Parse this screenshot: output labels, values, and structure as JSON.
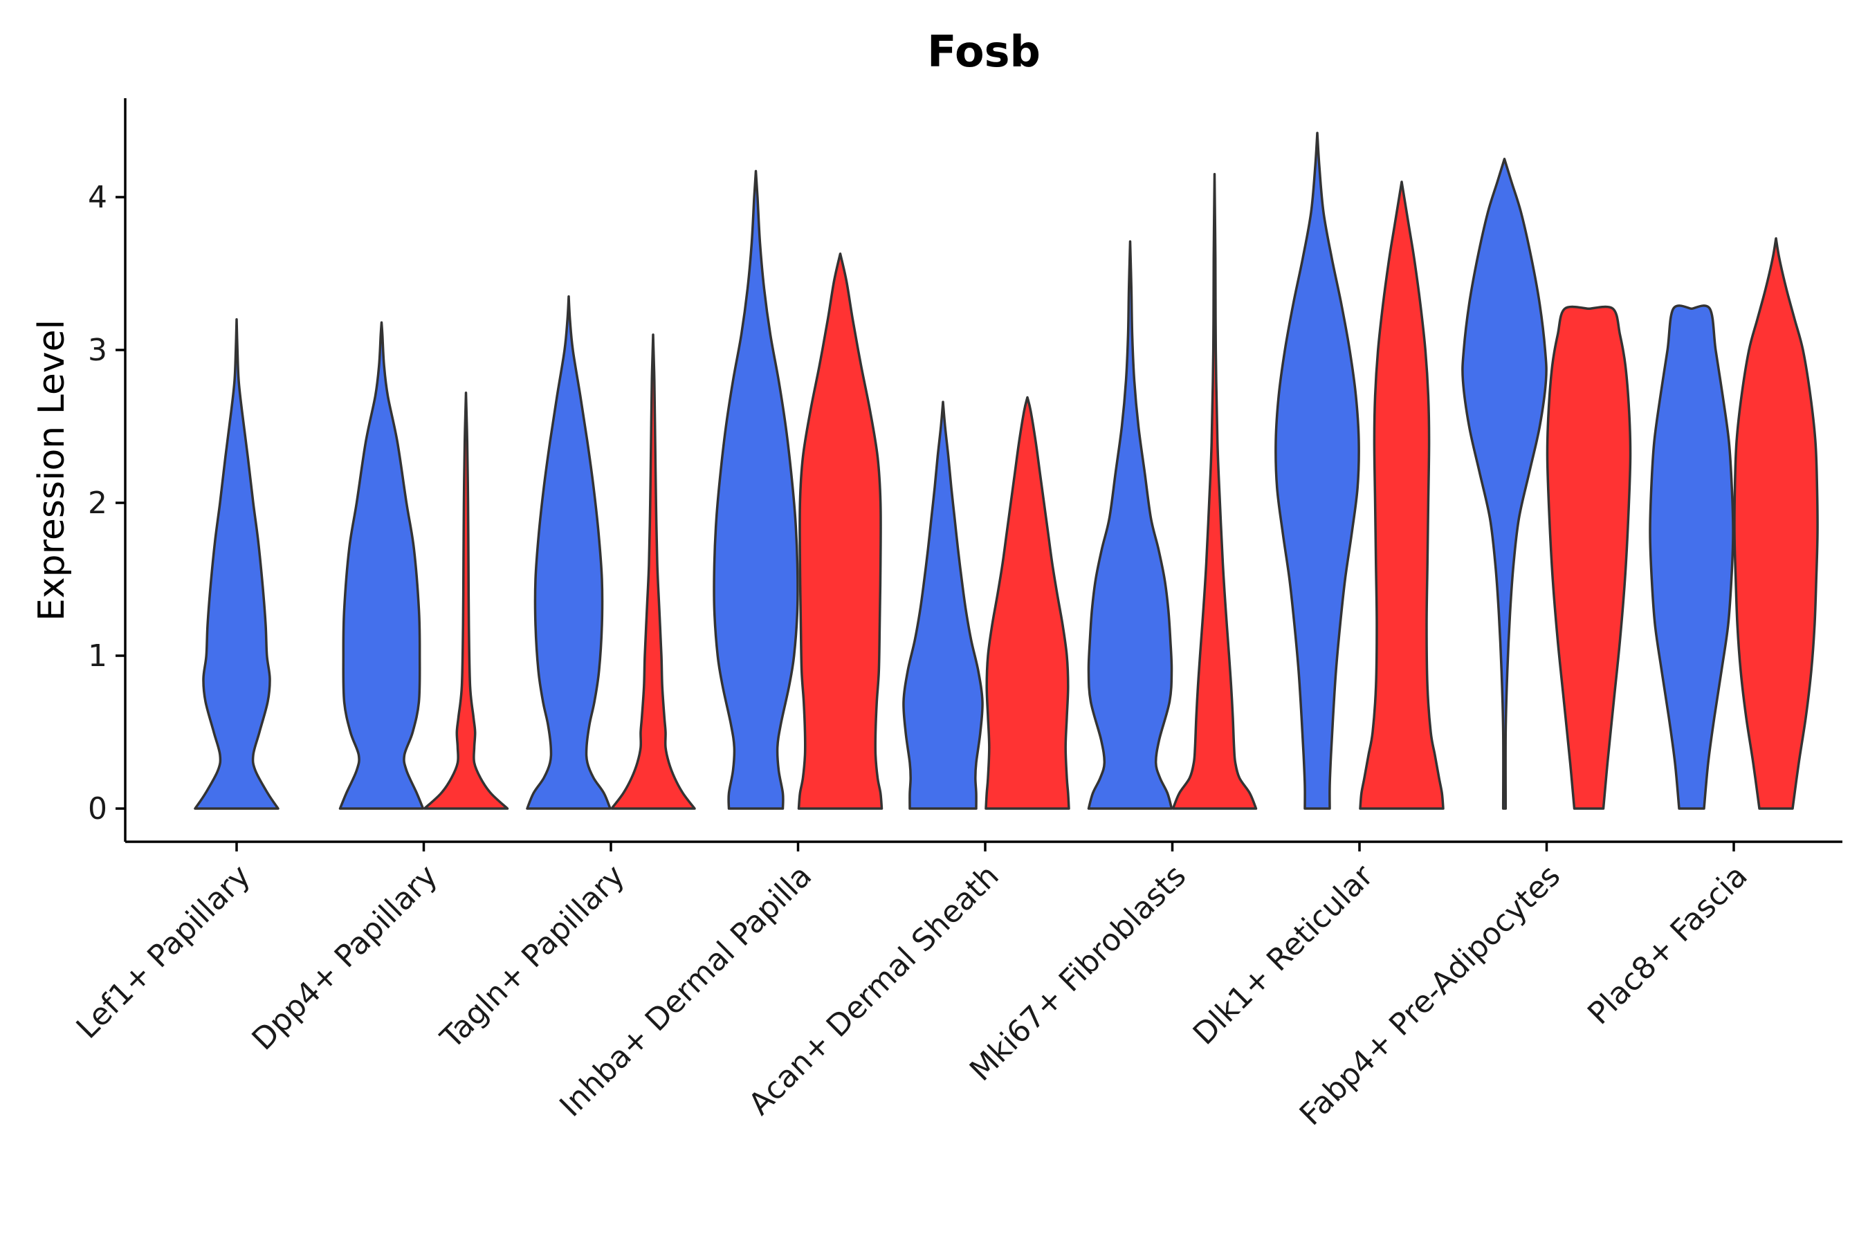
{
  "chart_data": {
    "type": "violin",
    "title": "Fosb",
    "ylabel": "Expression Level",
    "xlabel": "",
    "ylim": [
      -0.22,
      4.65
    ],
    "yticks": [
      0,
      1,
      2,
      3,
      4
    ],
    "categories": [
      "Lef1+ Papillary",
      "Dpp4+ Papillary",
      "Tagln+ Papillary",
      "Inhba+ Dermal Papilla",
      "Acan+ Dermal Sheath",
      "Mki67+ Fibroblasts",
      "Dlk1+ Reticular",
      "Fabp4+ Pre-Adipocytes",
      "Plac8+ Fascia"
    ],
    "colors": {
      "blue": "#4470EC",
      "red": "#FF3333"
    },
    "violins": [
      {
        "category": "Lef1+ Papillary",
        "color": "blue",
        "max": 3.2,
        "profile": [
          [
            0,
            1
          ],
          [
            0.1,
            0.75
          ],
          [
            0.25,
            0.45
          ],
          [
            0.35,
            0.4
          ],
          [
            0.5,
            0.55
          ],
          [
            0.7,
            0.75
          ],
          [
            0.85,
            0.8
          ],
          [
            1.0,
            0.73
          ],
          [
            1.2,
            0.7
          ],
          [
            1.45,
            0.63
          ],
          [
            1.75,
            0.52
          ],
          [
            2.0,
            0.4
          ],
          [
            2.3,
            0.27
          ],
          [
            2.6,
            0.13
          ],
          [
            2.8,
            0.05
          ],
          [
            3.0,
            0.02
          ],
          [
            3.2,
            0
          ]
        ]
      },
      {
        "category": "Dpp4+ Papillary",
        "color": "blue",
        "max": 3.18,
        "profile": [
          [
            0,
            1
          ],
          [
            0.1,
            0.85
          ],
          [
            0.25,
            0.6
          ],
          [
            0.35,
            0.55
          ],
          [
            0.5,
            0.75
          ],
          [
            0.7,
            0.9
          ],
          [
            1.0,
            0.92
          ],
          [
            1.3,
            0.9
          ],
          [
            1.7,
            0.78
          ],
          [
            2.0,
            0.6
          ],
          [
            2.4,
            0.38
          ],
          [
            2.7,
            0.15
          ],
          [
            2.9,
            0.06
          ],
          [
            3.1,
            0.02
          ],
          [
            3.18,
            0
          ]
        ]
      },
      {
        "category": "Dpp4+ Papillary",
        "color": "red",
        "max": 2.72,
        "profile": [
          [
            0,
            1
          ],
          [
            0.1,
            0.6
          ],
          [
            0.2,
            0.35
          ],
          [
            0.3,
            0.2
          ],
          [
            0.4,
            0.2
          ],
          [
            0.5,
            0.22
          ],
          [
            0.6,
            0.18
          ],
          [
            0.8,
            0.1
          ],
          [
            1.2,
            0.07
          ],
          [
            1.6,
            0.06
          ],
          [
            2.0,
            0.05
          ],
          [
            2.4,
            0.03
          ],
          [
            2.72,
            0
          ]
        ]
      },
      {
        "category": "Tagln+ Papillary",
        "color": "blue",
        "max": 3.35,
        "profile": [
          [
            0,
            1
          ],
          [
            0.1,
            0.85
          ],
          [
            0.2,
            0.6
          ],
          [
            0.3,
            0.45
          ],
          [
            0.4,
            0.43
          ],
          [
            0.55,
            0.5
          ],
          [
            0.7,
            0.62
          ],
          [
            0.9,
            0.73
          ],
          [
            1.2,
            0.8
          ],
          [
            1.5,
            0.8
          ],
          [
            1.8,
            0.72
          ],
          [
            2.1,
            0.6
          ],
          [
            2.4,
            0.45
          ],
          [
            2.7,
            0.28
          ],
          [
            3.0,
            0.1
          ],
          [
            3.2,
            0.03
          ],
          [
            3.35,
            0
          ]
        ]
      },
      {
        "category": "Tagln+ Papillary",
        "color": "red",
        "max": 3.1,
        "profile": [
          [
            0,
            1
          ],
          [
            0.1,
            0.72
          ],
          [
            0.2,
            0.52
          ],
          [
            0.3,
            0.38
          ],
          [
            0.4,
            0.3
          ],
          [
            0.5,
            0.3
          ],
          [
            0.6,
            0.27
          ],
          [
            0.8,
            0.22
          ],
          [
            1.0,
            0.2
          ],
          [
            1.3,
            0.15
          ],
          [
            1.6,
            0.1
          ],
          [
            2.0,
            0.07
          ],
          [
            2.4,
            0.05
          ],
          [
            2.8,
            0.03
          ],
          [
            3.1,
            0
          ]
        ]
      },
      {
        "category": "Inhba+ Dermal Papilla",
        "color": "blue",
        "max": 4.17,
        "profile": [
          [
            0,
            0.65
          ],
          [
            0.1,
            0.65
          ],
          [
            0.25,
            0.55
          ],
          [
            0.4,
            0.52
          ],
          [
            0.55,
            0.6
          ],
          [
            0.8,
            0.8
          ],
          [
            1.0,
            0.92
          ],
          [
            1.3,
            1.0
          ],
          [
            1.6,
            1.0
          ],
          [
            1.9,
            0.95
          ],
          [
            2.2,
            0.85
          ],
          [
            2.5,
            0.72
          ],
          [
            2.8,
            0.55
          ],
          [
            3.1,
            0.35
          ],
          [
            3.4,
            0.2
          ],
          [
            3.7,
            0.1
          ],
          [
            4.0,
            0.04
          ],
          [
            4.17,
            0
          ]
        ]
      },
      {
        "category": "Inhba+ Dermal Papilla",
        "color": "red",
        "max": 3.63,
        "profile": [
          [
            0,
            1
          ],
          [
            0.1,
            0.97
          ],
          [
            0.2,
            0.9
          ],
          [
            0.35,
            0.85
          ],
          [
            0.5,
            0.85
          ],
          [
            0.7,
            0.88
          ],
          [
            0.9,
            0.93
          ],
          [
            1.2,
            0.95
          ],
          [
            1.6,
            0.97
          ],
          [
            2.0,
            0.97
          ],
          [
            2.3,
            0.9
          ],
          [
            2.6,
            0.72
          ],
          [
            2.9,
            0.5
          ],
          [
            3.2,
            0.3
          ],
          [
            3.45,
            0.15
          ],
          [
            3.63,
            0
          ]
        ]
      },
      {
        "category": "Acan+ Dermal Sheath",
        "color": "blue",
        "max": 2.66,
        "profile": [
          [
            0,
            0.8
          ],
          [
            0.1,
            0.8
          ],
          [
            0.2,
            0.78
          ],
          [
            0.3,
            0.8
          ],
          [
            0.5,
            0.9
          ],
          [
            0.7,
            0.95
          ],
          [
            0.9,
            0.85
          ],
          [
            1.1,
            0.68
          ],
          [
            1.3,
            0.55
          ],
          [
            1.5,
            0.45
          ],
          [
            1.7,
            0.36
          ],
          [
            1.9,
            0.28
          ],
          [
            2.1,
            0.2
          ],
          [
            2.3,
            0.13
          ],
          [
            2.5,
            0.05
          ],
          [
            2.66,
            0
          ]
        ]
      },
      {
        "category": "Acan+ Dermal Sheath",
        "color": "red",
        "max": 2.69,
        "profile": [
          [
            0,
            1
          ],
          [
            0.1,
            0.98
          ],
          [
            0.2,
            0.95
          ],
          [
            0.4,
            0.92
          ],
          [
            0.6,
            0.95
          ],
          [
            0.8,
            0.98
          ],
          [
            1.0,
            0.95
          ],
          [
            1.2,
            0.85
          ],
          [
            1.4,
            0.72
          ],
          [
            1.6,
            0.6
          ],
          [
            1.8,
            0.5
          ],
          [
            2.0,
            0.4
          ],
          [
            2.2,
            0.3
          ],
          [
            2.4,
            0.2
          ],
          [
            2.6,
            0.08
          ],
          [
            2.69,
            0
          ]
        ]
      },
      {
        "category": "Mki67+ Fibroblasts",
        "color": "blue",
        "max": 3.71,
        "profile": [
          [
            0,
            1
          ],
          [
            0.1,
            0.9
          ],
          [
            0.2,
            0.72
          ],
          [
            0.3,
            0.62
          ],
          [
            0.45,
            0.7
          ],
          [
            0.7,
            0.95
          ],
          [
            0.9,
            1.0
          ],
          [
            1.1,
            0.97
          ],
          [
            1.3,
            0.92
          ],
          [
            1.5,
            0.83
          ],
          [
            1.7,
            0.68
          ],
          [
            1.9,
            0.5
          ],
          [
            2.2,
            0.35
          ],
          [
            2.5,
            0.2
          ],
          [
            2.8,
            0.1
          ],
          [
            3.1,
            0.05
          ],
          [
            3.4,
            0.03
          ],
          [
            3.71,
            0
          ]
        ]
      },
      {
        "category": "Mki67+ Fibroblasts",
        "color": "red",
        "max": 4.15,
        "profile": [
          [
            0,
            1
          ],
          [
            0.1,
            0.85
          ],
          [
            0.2,
            0.6
          ],
          [
            0.3,
            0.5
          ],
          [
            0.4,
            0.47
          ],
          [
            0.6,
            0.44
          ],
          [
            0.8,
            0.4
          ],
          [
            1.0,
            0.35
          ],
          [
            1.3,
            0.27
          ],
          [
            1.6,
            0.2
          ],
          [
            2.0,
            0.13
          ],
          [
            2.4,
            0.07
          ],
          [
            3.0,
            0.03
          ],
          [
            3.6,
            0.02
          ],
          [
            4.15,
            0
          ]
        ]
      },
      {
        "category": "Dlk1+ Reticular",
        "color": "blue",
        "max": 4.42,
        "profile": [
          [
            0,
            0.3
          ],
          [
            0.15,
            0.3
          ],
          [
            0.35,
            0.33
          ],
          [
            0.6,
            0.38
          ],
          [
            0.9,
            0.45
          ],
          [
            1.2,
            0.55
          ],
          [
            1.5,
            0.67
          ],
          [
            1.8,
            0.83
          ],
          [
            2.1,
            0.97
          ],
          [
            2.4,
            1.0
          ],
          [
            2.7,
            0.93
          ],
          [
            3.0,
            0.78
          ],
          [
            3.3,
            0.58
          ],
          [
            3.6,
            0.35
          ],
          [
            3.9,
            0.15
          ],
          [
            4.2,
            0.05
          ],
          [
            4.42,
            0
          ]
        ]
      },
      {
        "category": "Dlk1+ Reticular",
        "color": "red",
        "max": 4.1,
        "profile": [
          [
            0,
            1
          ],
          [
            0.1,
            0.97
          ],
          [
            0.2,
            0.9
          ],
          [
            0.35,
            0.8
          ],
          [
            0.5,
            0.7
          ],
          [
            0.8,
            0.62
          ],
          [
            1.2,
            0.6
          ],
          [
            1.6,
            0.62
          ],
          [
            2.0,
            0.64
          ],
          [
            2.4,
            0.66
          ],
          [
            2.7,
            0.64
          ],
          [
            3.0,
            0.57
          ],
          [
            3.3,
            0.45
          ],
          [
            3.6,
            0.3
          ],
          [
            3.8,
            0.18
          ],
          [
            4.0,
            0.06
          ],
          [
            4.1,
            0
          ]
        ]
      },
      {
        "category": "Fabp4+ Pre-Adipocytes",
        "color": "blue",
        "max": 4.25,
        "profile": [
          [
            0,
            0.03
          ],
          [
            0.5,
            0.03
          ],
          [
            0.9,
            0.07
          ],
          [
            1.3,
            0.14
          ],
          [
            1.6,
            0.22
          ],
          [
            1.9,
            0.35
          ],
          [
            2.2,
            0.6
          ],
          [
            2.5,
            0.85
          ],
          [
            2.8,
            1.0
          ],
          [
            3.0,
            0.98
          ],
          [
            3.3,
            0.85
          ],
          [
            3.6,
            0.65
          ],
          [
            3.9,
            0.4
          ],
          [
            4.1,
            0.17
          ],
          [
            4.25,
            0
          ]
        ]
      },
      {
        "category": "Fabp4+ Pre-Adipocytes",
        "color": "red",
        "max": 3.27,
        "profile": [
          [
            0,
            0.35
          ],
          [
            0.3,
            0.45
          ],
          [
            0.7,
            0.6
          ],
          [
            1.1,
            0.75
          ],
          [
            1.5,
            0.87
          ],
          [
            1.9,
            0.95
          ],
          [
            2.3,
            1.0
          ],
          [
            2.6,
            0.97
          ],
          [
            2.9,
            0.88
          ],
          [
            3.1,
            0.75
          ],
          [
            3.27,
            0.58
          ],
          [
            3.27,
            0
          ]
        ]
      },
      {
        "category": "Plac8+ Fascia",
        "color": "blue",
        "max": 3.27,
        "profile": [
          [
            0,
            0.3
          ],
          [
            0.3,
            0.4
          ],
          [
            0.6,
            0.55
          ],
          [
            0.9,
            0.72
          ],
          [
            1.2,
            0.88
          ],
          [
            1.5,
            0.96
          ],
          [
            1.8,
            1.0
          ],
          [
            2.1,
            0.97
          ],
          [
            2.4,
            0.9
          ],
          [
            2.7,
            0.75
          ],
          [
            3.0,
            0.58
          ],
          [
            3.27,
            0.44
          ],
          [
            3.27,
            0
          ]
        ]
      },
      {
        "category": "Plac8+ Fascia",
        "color": "red",
        "max": 3.73,
        "profile": [
          [
            0,
            0.4
          ],
          [
            0.3,
            0.55
          ],
          [
            0.6,
            0.72
          ],
          [
            0.9,
            0.85
          ],
          [
            1.2,
            0.93
          ],
          [
            1.5,
            0.97
          ],
          [
            1.8,
            1.0
          ],
          [
            2.1,
            0.99
          ],
          [
            2.4,
            0.95
          ],
          [
            2.7,
            0.83
          ],
          [
            3.0,
            0.65
          ],
          [
            3.2,
            0.45
          ],
          [
            3.4,
            0.25
          ],
          [
            3.6,
            0.08
          ],
          [
            3.73,
            0
          ]
        ]
      }
    ]
  }
}
